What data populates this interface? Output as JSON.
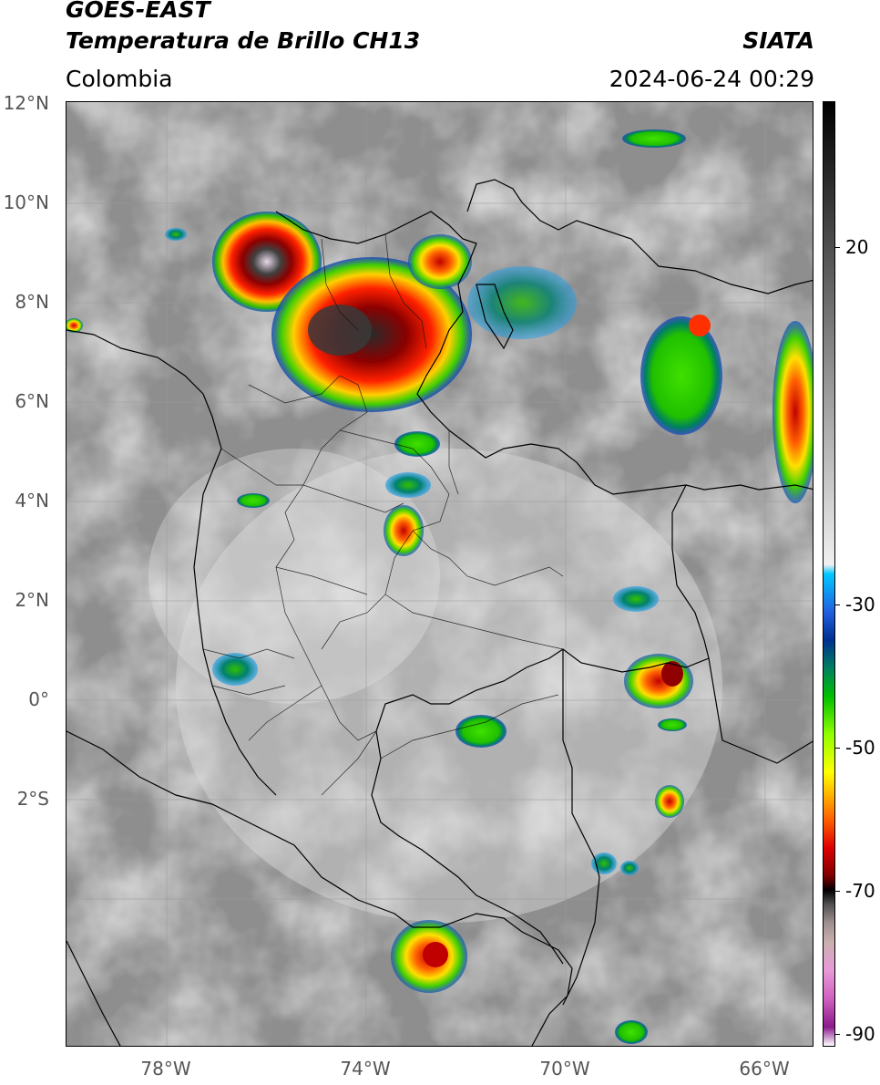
{
  "header": {
    "satellite": "GOES-EAST",
    "product": "Temperatura de Brillo CH13",
    "organization": "SIATA",
    "region": "Colombia",
    "datetime": "2024-06-24 00:29"
  },
  "map": {
    "lat_labels": [
      "12°N",
      "10°N",
      "8°N",
      "6°N",
      "4°N",
      "2°N",
      "0°",
      "2°S"
    ],
    "lon_labels": [
      "78°W",
      "74°W",
      "70°W",
      "66°W"
    ]
  },
  "colorbar": {
    "tick_labels": [
      "20",
      "-30",
      "-50",
      "-70",
      "-90"
    ],
    "palette": [
      "#ffffff",
      "#8b1a8b",
      "#d060c0",
      "#e89ad8",
      "#c9b0b0",
      "#a09090",
      "#505050",
      "#000000",
      "#800000",
      "#e00000",
      "#ff6000",
      "#ffc000",
      "#ffff00",
      "#90ff00",
      "#00c000",
      "#008060",
      "#003090",
      "#2060e0",
      "#00c8ff",
      "#f0f0f0",
      "#808080",
      "#000000"
    ]
  }
}
